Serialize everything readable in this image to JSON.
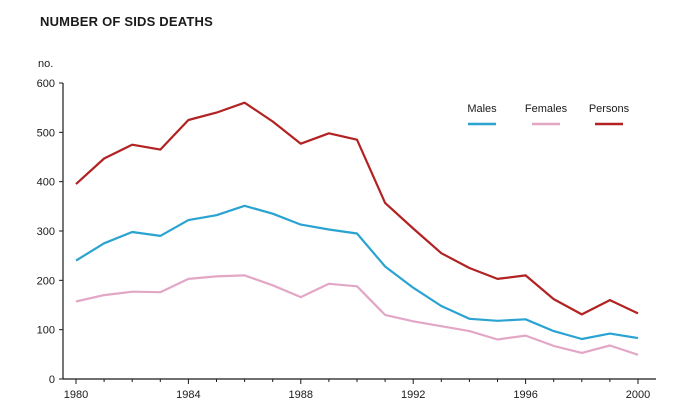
{
  "chart_data": {
    "type": "line",
    "title": "NUMBER OF SIDS DEATHS",
    "ylabel": "no.",
    "xlabel": "",
    "xlim": [
      1980,
      2000
    ],
    "ylim": [
      0,
      600
    ],
    "xticks": [
      1980,
      1984,
      1988,
      1992,
      1996,
      2000
    ],
    "yticks": [
      0,
      100,
      200,
      300,
      400,
      500,
      600
    ],
    "grid": false,
    "legend_position": "top-right",
    "x": [
      1980,
      1981,
      1982,
      1983,
      1984,
      1985,
      1986,
      1987,
      1988,
      1989,
      1990,
      1991,
      1992,
      1993,
      1994,
      1995,
      1996,
      1997,
      1998,
      1999,
      2000
    ],
    "series": [
      {
        "name": "Males",
        "color": "#2aa3d1",
        "values": [
          240,
          275,
          298,
          290,
          322,
          332,
          351,
          335,
          313,
          303,
          295,
          228,
          185,
          148,
          122,
          118,
          121,
          97,
          81,
          92,
          83
        ]
      },
      {
        "name": "Females",
        "color": "#e3a7c6",
        "values": [
          157,
          170,
          177,
          176,
          203,
          208,
          210,
          190,
          166,
          193,
          188,
          130,
          117,
          107,
          97,
          80,
          88,
          67,
          53,
          68,
          49
        ]
      },
      {
        "name": "Persons",
        "color": "#b22222",
        "values": [
          395,
          447,
          475,
          465,
          525,
          540,
          560,
          522,
          477,
          498,
          485,
          357,
          305,
          255,
          225,
          203,
          210,
          162,
          131,
          160,
          133
        ]
      }
    ]
  }
}
